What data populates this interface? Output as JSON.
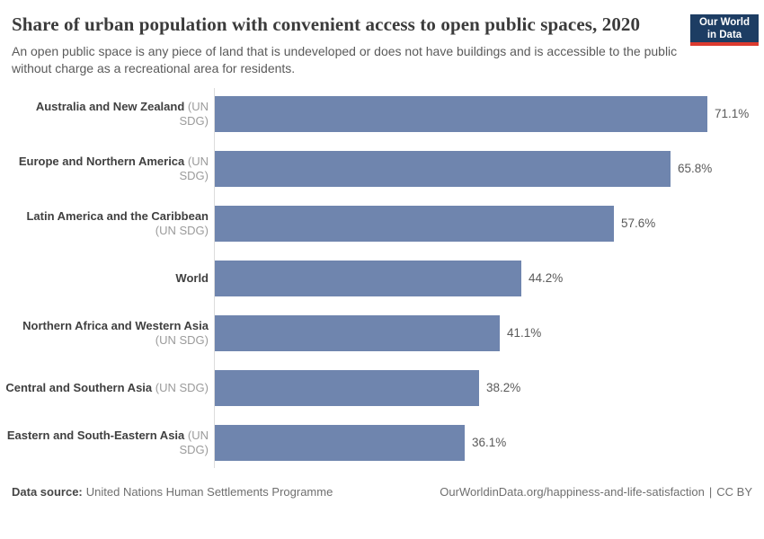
{
  "chart_data": {
    "type": "bar",
    "orientation": "horizontal",
    "title": "Share of urban population with convenient access to open public spaces, 2020",
    "subtitle": "An open public space is any piece of land that is undeveloped or does not have buildings and is accessible to the public without charge as a recreational area for residents.",
    "unit": "%",
    "categories": [
      "Australia and New Zealand",
      "Europe and Northern America",
      "Latin America and the Caribbean",
      "World",
      "Northern Africa and Western Asia",
      "Central and Southern Asia",
      "Eastern and South-Eastern Asia"
    ],
    "qualifiers": [
      "(UN SDG)",
      "(UN SDG)",
      "(UN SDG)",
      "",
      "(UN SDG)",
      "(UN SDG)",
      "(UN SDG)"
    ],
    "values": [
      71.1,
      65.8,
      57.6,
      44.2,
      41.1,
      38.2,
      36.1
    ],
    "value_labels": [
      "71.1%",
      "65.8%",
      "57.6%",
      "44.2%",
      "41.1%",
      "38.2%",
      "36.1%"
    ],
    "xlim": [
      0,
      71.1
    ],
    "grid": false,
    "legend": "none",
    "bar_color": "#6f85ae"
  },
  "logo": {
    "line1": "Our World",
    "line2": "in Data",
    "bg_color": "#1d3d63",
    "underline_color": "#dc3b2f"
  },
  "footer": {
    "datasource_label": "Data source:",
    "datasource": "United Nations Human Settlements Programme",
    "link": "OurWorldinData.org/happiness-and-life-satisfaction",
    "separator": "|",
    "license": "CC BY"
  }
}
